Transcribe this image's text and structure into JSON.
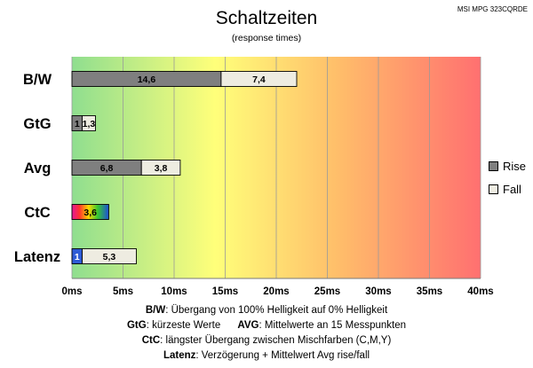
{
  "chart_data": {
    "type": "bar",
    "orientation": "horizontal",
    "stacked": true,
    "title": "Schaltzeiten",
    "subtitle": "(response times)",
    "corner_label": "MSI MPG 323CQRDE",
    "categories": [
      "B/W",
      "GtG",
      "Avg",
      "CtC",
      "Latenz"
    ],
    "series": [
      {
        "name": "Rise",
        "color": "#7f7f7f",
        "values": [
          14.6,
          1,
          6.8,
          3.6,
          1
        ],
        "labels": [
          "14,6",
          "1",
          "6,8",
          "3,6",
          "1"
        ]
      },
      {
        "name": "Fall",
        "color": "#eeece1",
        "values": [
          7.4,
          1.3,
          3.8,
          null,
          5.3
        ],
        "labels": [
          "7,4",
          "1,3",
          "3,8",
          null,
          "5,3"
        ]
      }
    ],
    "special_fills": {
      "CtC": "rainbow",
      "Latenz": "#2e5bd6"
    },
    "xlim": [
      0,
      40
    ],
    "xticks": [
      "0ms",
      "5ms",
      "10ms",
      "15ms",
      "20ms",
      "25ms",
      "30ms",
      "35ms",
      "40ms"
    ],
    "background_gradient": [
      "#90e090",
      "#ffff80",
      "#ff6f6f"
    ],
    "legend_position": "right"
  },
  "notes": [
    {
      "b": "B/W",
      "t": ":  Übergang von 100% Helligkeit auf 0% Helligkeit"
    },
    {
      "b": "GtG",
      "t": ": kürzeste  Werte",
      "b2": "AVG",
      "t2": ": Mittelwerte  an 15 Messpunkten"
    },
    {
      "b": "CtC",
      "t": ": längster Übergang  zwischen Mischfarben  (C,M,Y)"
    },
    {
      "b": "Latenz",
      "t": ": Verzögerung  + Mittelwert  Avg rise/fall"
    }
  ]
}
